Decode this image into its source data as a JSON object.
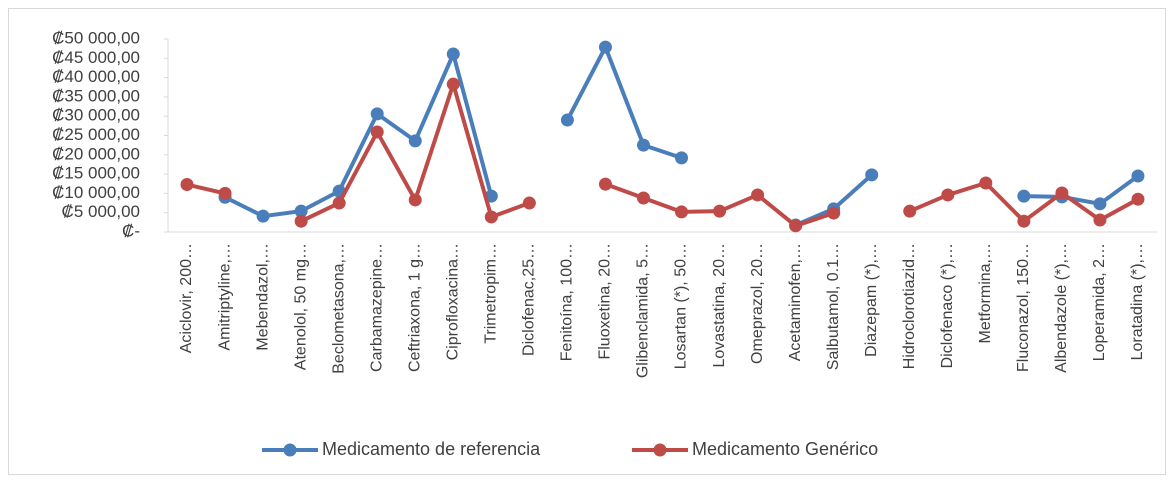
{
  "chart_data": {
    "type": "line",
    "categories": [
      "Aciclovir, 200…",
      "Amitriptyline,…",
      "Mebendazol,…",
      "Atenolol, 50 mg…",
      "Beclometasona,…",
      "Carbamazepine…",
      "Ceftriaxona, 1 g…",
      "Ciprofloxacina…",
      "Trimetropim…",
      "Diclofenac,25…",
      "Fenitoína, 100…",
      "Fluoxetina, 20…",
      "Glibenclamida, 5…",
      "Losartan (*), 50…",
      "Lovastatina, 20…",
      "Omeprazol, 20…",
      "Acetaminofen,…",
      "Salbutamol, 0.1…",
      "Diazepam (*),…",
      "Hidroclorotiazid…",
      "Diclofenaco (*),…",
      "Metformina,…",
      "Fluconazol, 150…",
      "Albendazole (*),…",
      "Loperamida, 2…",
      "Loratadina (*),…"
    ],
    "series": [
      {
        "name": "Medicamento de referencia",
        "color": "#4a7ebb",
        "values": [
          null,
          9000,
          4100,
          5400,
          10600,
          30600,
          23600,
          46100,
          9300,
          null,
          29000,
          47900,
          22500,
          19200,
          null,
          null,
          1800,
          6000,
          14800,
          null,
          null,
          null,
          9300,
          9100,
          7300,
          14500
        ]
      },
      {
        "name": "Medicamento Genérico",
        "color": "#be4b48",
        "values": [
          12300,
          10000,
          null,
          2800,
          7500,
          25900,
          8300,
          38300,
          3900,
          7500,
          null,
          12400,
          8800,
          5200,
          5400,
          9600,
          1600,
          4900,
          null,
          5400,
          9600,
          12700,
          2800,
          10100,
          3100,
          8500
        ]
      }
    ],
    "ylim": [
      0,
      50000
    ],
    "yticks": [
      {
        "value": 0,
        "label": "₡-"
      },
      {
        "value": 5000,
        "label": "₡5 000,00"
      },
      {
        "value": 10000,
        "label": "₡10 000,00"
      },
      {
        "value": 15000,
        "label": "₡15 000,00"
      },
      {
        "value": 20000,
        "label": "₡20 000,00"
      },
      {
        "value": 25000,
        "label": "₡25 000,00"
      },
      {
        "value": 30000,
        "label": "₡30 000,00"
      },
      {
        "value": 35000,
        "label": "₡35 000,00"
      },
      {
        "value": 40000,
        "label": "₡40 000,00"
      },
      {
        "value": 45000,
        "label": "₡45 000,00"
      },
      {
        "value": 50000,
        "label": "₡50 000,00"
      }
    ],
    "grid": false,
    "legend": "bottom"
  }
}
